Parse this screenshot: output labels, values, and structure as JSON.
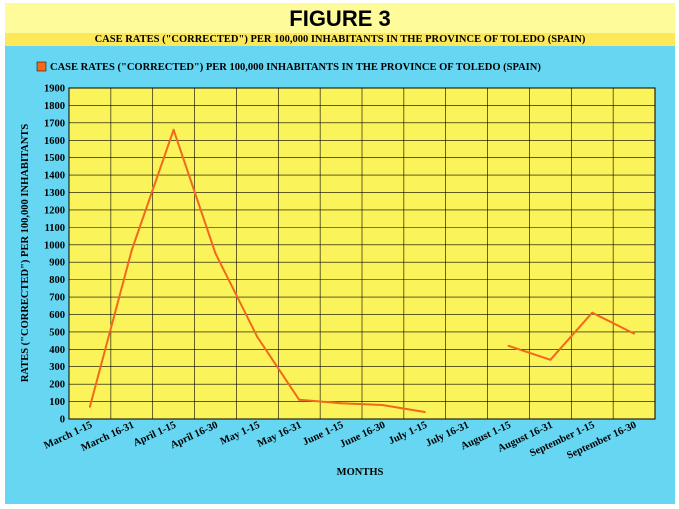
{
  "figure_title": "FIGURE 3",
  "subtitle": "CASE RATES (\"CORRECTED\") PER 100,000 INHABITANTS IN THE PROVINCE OF TOLEDO (SPAIN)",
  "colors": {
    "plot_bg": "#fbf35a",
    "panel_bg": "#66d6f2",
    "line": "#f2691e",
    "grid": "#000000"
  },
  "chart_data": {
    "type": "line",
    "xlabel": "MONTHS",
    "ylabel": "RATES (\"CORRECTED\") PER 100,000 INHABITANTS",
    "ylim": [
      0,
      1900
    ],
    "ytick_step": 100,
    "grid": true,
    "legend_position": "top-left",
    "categories": [
      "March 1-15",
      "March 16-31",
      "April 1-15",
      "April 16-30",
      "May 1-15",
      "May 16-31",
      "June 1-15",
      "June 16-30",
      "July 1-15",
      "July 16-31",
      "August 1-15",
      "August 16-31",
      "September 1-15",
      "September 16-30"
    ],
    "series": [
      {
        "name": "CASE RATES (\"CORRECTED\") PER 100,000 INHABITANTS IN THE PROVINCE OF TOLEDO (SPAIN)",
        "values": [
          70,
          970,
          1660,
          950,
          470,
          110,
          90,
          80,
          40,
          null,
          420,
          340,
          610,
          490
        ]
      }
    ]
  }
}
